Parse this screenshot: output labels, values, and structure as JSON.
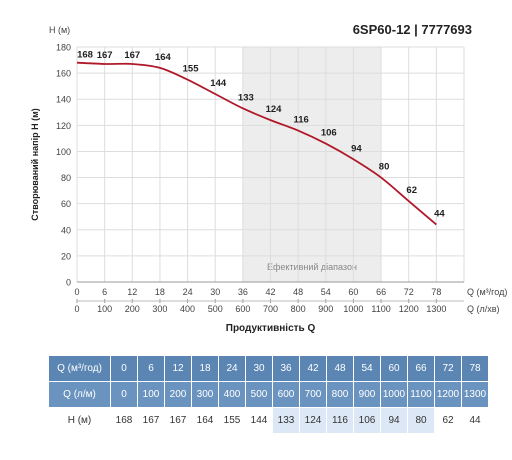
{
  "title": "6SP60-12 | 7777693",
  "chart_data": {
    "type": "line",
    "ylabel_unit": "H (м)",
    "ylabel": "Створюваний напір H (м)",
    "xlabel": "Продуктивність Q",
    "x_unit_top": "Q (м³/год)",
    "x_unit_bottom": "Q (л/хв)",
    "ylim": [
      0,
      180
    ],
    "yticks": [
      0,
      20,
      40,
      60,
      80,
      100,
      120,
      140,
      160,
      180
    ],
    "xlim": [
      0,
      84
    ],
    "x": [
      0,
      6,
      12,
      18,
      24,
      30,
      36,
      42,
      48,
      54,
      60,
      66,
      72,
      78
    ],
    "x_lmin": [
      0,
      100,
      200,
      300,
      400,
      500,
      600,
      700,
      800,
      900,
      1000,
      1100,
      1200,
      1300
    ],
    "series": [
      {
        "values": [
          168,
          167,
          167,
          164,
          155,
          144,
          133,
          124,
          116,
          106,
          94,
          80,
          62,
          44
        ],
        "color": "#b0182a"
      }
    ],
    "band": {
      "x_from": 36,
      "x_to": 66,
      "label": "Ефективний діапазон"
    },
    "grid": true
  },
  "table": {
    "rows": [
      {
        "label": "Q (м³/год)",
        "values": [
          "0",
          "6",
          "12",
          "18",
          "24",
          "30",
          "36",
          "42",
          "48",
          "54",
          "60",
          "66",
          "72",
          "78"
        ]
      },
      {
        "label": "Q (л/м)",
        "values": [
          "0",
          "100",
          "200",
          "300",
          "400",
          "500",
          "600",
          "700",
          "800",
          "900",
          "1000",
          "1100",
          "1200",
          "1300"
        ]
      },
      {
        "label": "H (м)",
        "values": [
          "168",
          "167",
          "167",
          "164",
          "155",
          "144",
          "133",
          "124",
          "116",
          "106",
          "94",
          "80",
          "62",
          "44"
        ]
      }
    ]
  },
  "colors": {
    "curve": "#b0182a",
    "band": "#ededed",
    "table_header": "#5b86b3",
    "table_highlight": "#dce8f5"
  }
}
